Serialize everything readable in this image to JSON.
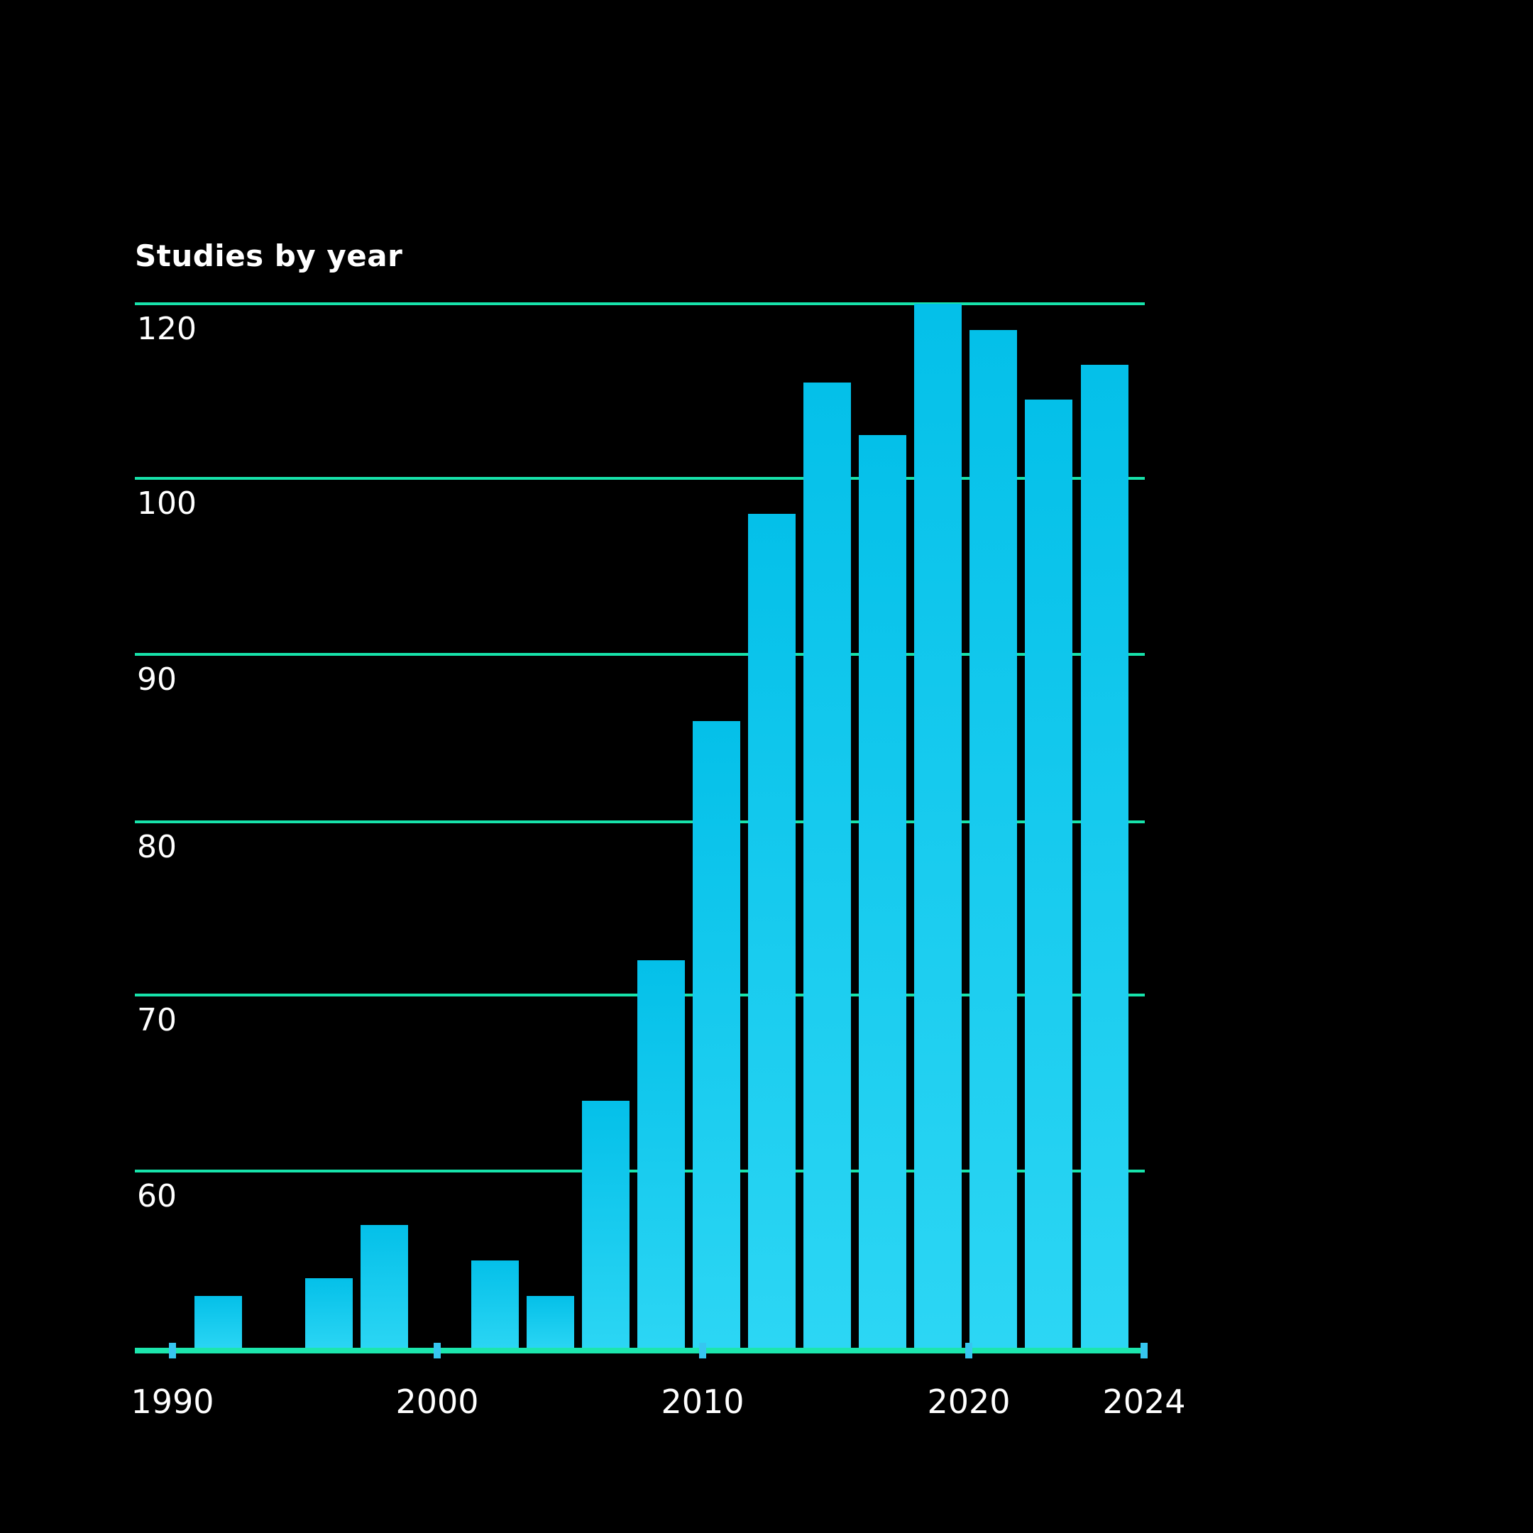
{
  "chart_data": {
    "type": "bar",
    "title": "Studies by year",
    "x": [
      1992,
      1996,
      1998,
      2002,
      2004,
      2006,
      2008,
      2010,
      2012,
      2014,
      2016,
      2018,
      2020,
      2022,
      2024
    ],
    "values": [
      53,
      54,
      57,
      55,
      53,
      64,
      72,
      86,
      98,
      111,
      105,
      120,
      117,
      109,
      113
    ],
    "x_tick_labels": [
      "1990",
      "2000",
      "2010",
      "2020",
      "2024"
    ],
    "y_tick_values": [
      120,
      100,
      90,
      80,
      70,
      60
    ],
    "y_tick_labels": [
      "120",
      "100",
      "90",
      "80",
      "70",
      "60"
    ],
    "ylim": [
      50,
      122
    ],
    "xlabel": "",
    "ylabel": "",
    "grid": "horizontal",
    "legend": "none",
    "colors": {
      "background": "#000000",
      "bar_top": "#04c0e9",
      "bar_bottom": "#2cd6f4",
      "gridline": "#17e3ab",
      "axis": "#1ce6ad",
      "tick": "#36c6f0",
      "text": "#ffffff"
    }
  }
}
